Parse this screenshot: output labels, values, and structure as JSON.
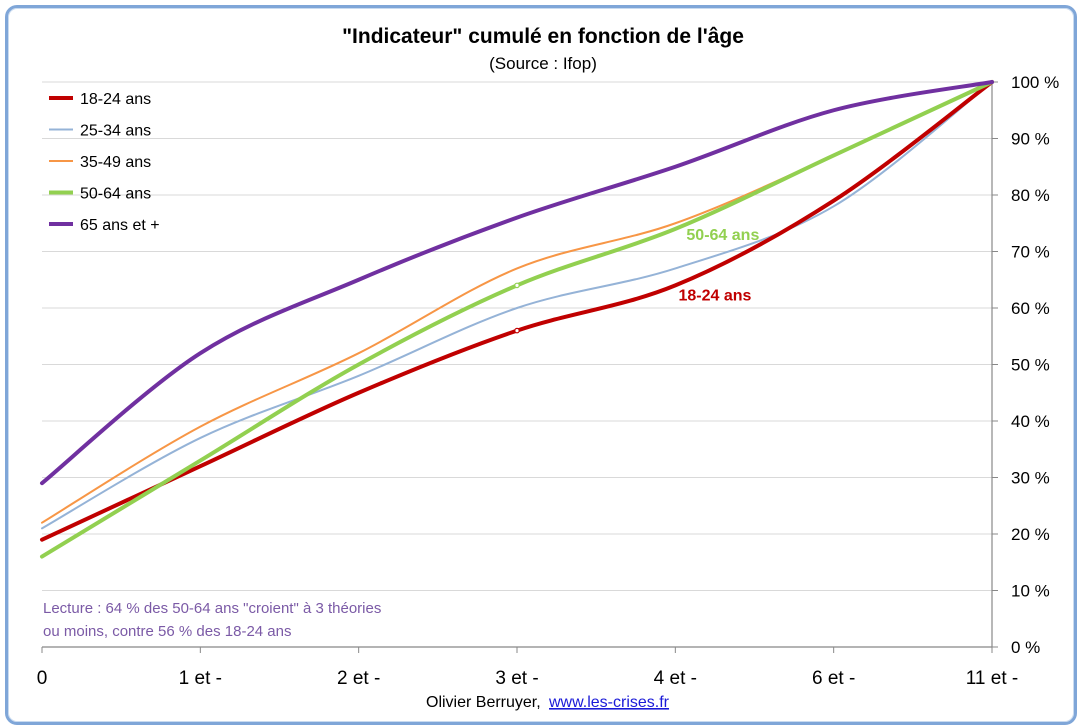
{
  "chart_data": {
    "type": "line",
    "title": "\"Indicateur\" cumulé en fonction de l'âge",
    "subtitle": "(Source : Ifop)",
    "categories": [
      "0",
      "1 et -",
      "2 et -",
      "3 et -",
      "4 et -",
      "6 et -",
      "11 et -"
    ],
    "y_ticks": [
      "0 %",
      "10 %",
      "20 %",
      "30 %",
      "40 %",
      "50 %",
      "60 %",
      "70 %",
      "80 %",
      "90 %",
      "100 %"
    ],
    "ylim": [
      0,
      100
    ],
    "grid": true,
    "legend_position": "top-left",
    "y_axis_side": "right",
    "series": [
      {
        "name": "18-24 ans",
        "color": "#c00000",
        "width": 4,
        "values": [
          19,
          32,
          45,
          56,
          64,
          79,
          100
        ]
      },
      {
        "name": "25-34 ans",
        "color": "#95b3d7",
        "width": 2,
        "values": [
          21,
          37,
          48,
          60,
          67,
          78,
          100
        ]
      },
      {
        "name": "35-49 ans",
        "color": "#f79646",
        "width": 2,
        "values": [
          22,
          39,
          52,
          67,
          75,
          87,
          100
        ]
      },
      {
        "name": "50-64 ans",
        "color": "#92d050",
        "width": 4,
        "values": [
          16,
          33,
          50,
          64,
          74,
          87,
          100
        ]
      },
      {
        "name": "65 ans et +",
        "color": "#7030a0",
        "width": 4,
        "values": [
          29,
          52,
          65,
          76,
          85,
          95,
          100
        ]
      }
    ],
    "annotations": [
      {
        "text": "50-64 ans",
        "color": "#92d050",
        "x_index": 4.07,
        "y": 72
      },
      {
        "text": "18-24 ans",
        "color": "#c00000",
        "x_index": 4.02,
        "y": 61.3
      }
    ],
    "markers": [
      {
        "x_index": 3,
        "y": 64,
        "color": "#92d050"
      },
      {
        "x_index": 3,
        "y": 56,
        "color": "#c00000"
      }
    ]
  },
  "note": {
    "line1": "Lecture : 64 % des 50-64 ans \"croient\" à 3 théories",
    "line2": "ou moins,  contre  56 % des 18-24 ans"
  },
  "credit": {
    "author": "Olivier Berruyer,",
    "link": "www.les-crises.fr"
  }
}
